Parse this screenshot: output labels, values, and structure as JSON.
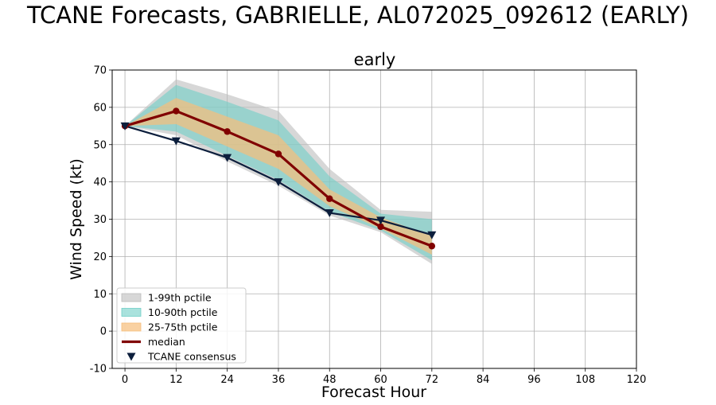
{
  "suptitle": "TCANE Forecasts, GABRIELLE, AL072025_092612 (EARLY)",
  "chart_data": {
    "type": "line",
    "title": "early",
    "xlabel": "Forecast Hour",
    "ylabel": "Wind Speed (kt)",
    "xlim": [
      -3,
      120
    ],
    "ylim": [
      -10,
      70
    ],
    "xticks": [
      0,
      12,
      24,
      36,
      48,
      60,
      72,
      84,
      96,
      108,
      120
    ],
    "yticks": [
      -10,
      0,
      10,
      20,
      30,
      40,
      50,
      60,
      70
    ],
    "grid": true,
    "legend_position": "lower-left",
    "x": [
      0,
      12,
      24,
      36,
      48,
      60,
      72
    ],
    "bands": [
      {
        "name": "1-99th pctile",
        "color": "#bdbdbd",
        "lower": [
          55,
          52.5,
          45.5,
          39,
          31,
          26.5,
          18
        ],
        "upper": [
          55,
          67.5,
          63.5,
          59,
          43.5,
          32.5,
          32
        ]
      },
      {
        "name": "10-90th pctile",
        "color": "#6fcfc6",
        "lower": [
          55,
          53.5,
          47,
          40.5,
          32,
          27,
          19
        ],
        "upper": [
          55,
          66,
          61.5,
          56.5,
          41.5,
          31.5,
          30
        ]
      },
      {
        "name": "25-75th pctile",
        "color": "#f6bd7a",
        "lower": [
          55,
          55.5,
          49.5,
          43.5,
          33.5,
          27.5,
          20.5
        ],
        "upper": [
          55,
          62.5,
          57.5,
          52.5,
          38,
          30.5,
          25.5
        ]
      }
    ],
    "series": [
      {
        "name": "median",
        "color": "#800000",
        "marker": "circle",
        "values": [
          55,
          59,
          53.5,
          47.5,
          35.5,
          28,
          22.8
        ]
      },
      {
        "name": "TCANE consensus",
        "color": "#0c1e3c",
        "marker": "triangle-down",
        "values": [
          55,
          51,
          46.5,
          40,
          31.7,
          29.7,
          25.8
        ]
      }
    ]
  }
}
